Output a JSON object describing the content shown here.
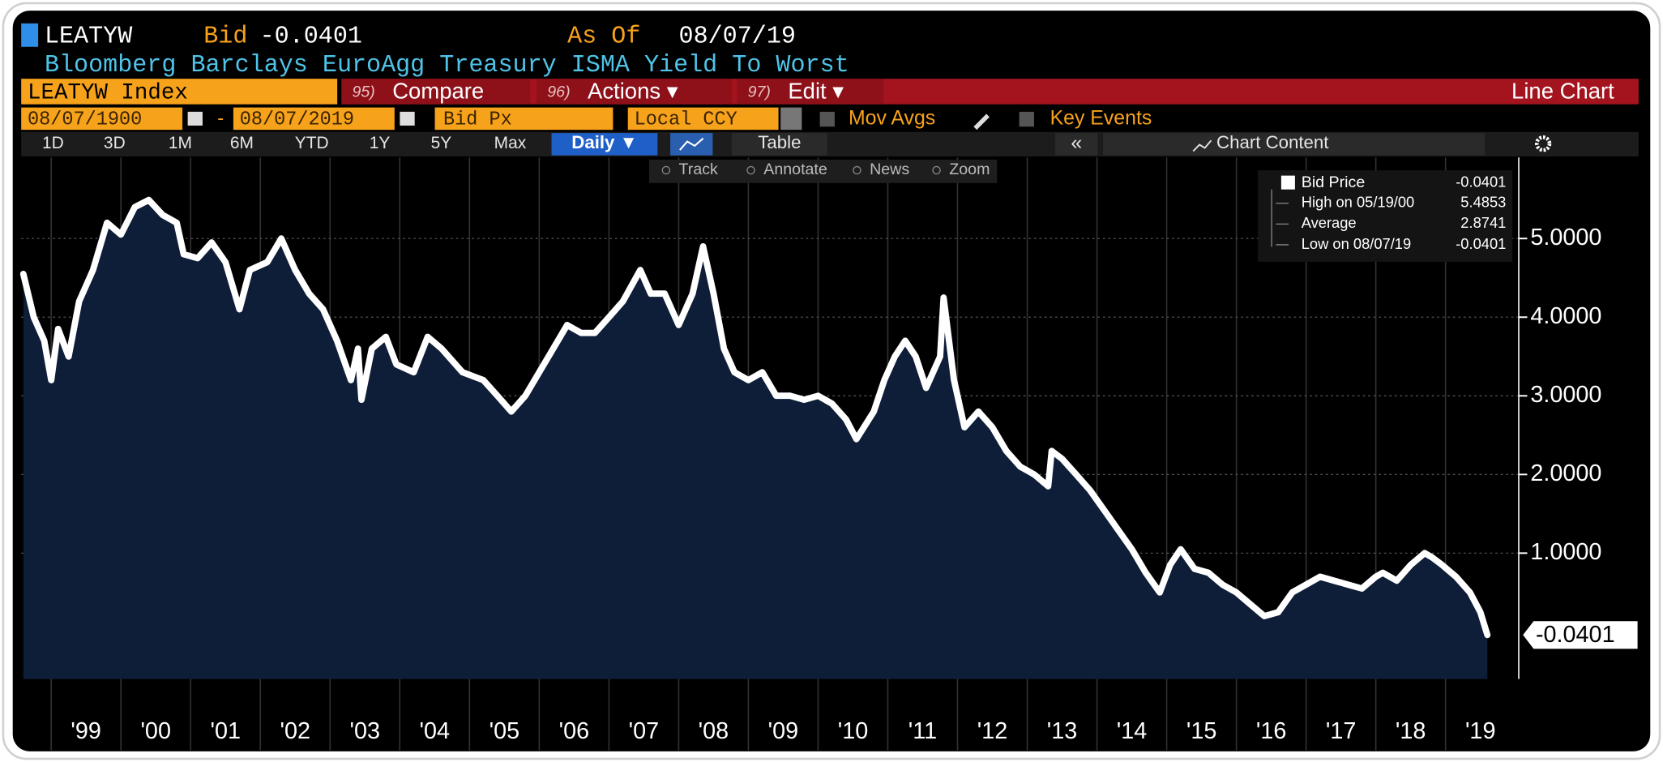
{
  "header": {
    "ticker": "LEATYW",
    "bid_label": "Bid",
    "bid_value": "-0.0401",
    "asof_label": "As Of",
    "asof_value": "08/07/19",
    "description": "Bloomberg Barclays EuroAgg Treasury ISMA Yield To Worst"
  },
  "menu": {
    "security": "LEATYW Index",
    "items": [
      {
        "key": "95)",
        "label": "Compare"
      },
      {
        "key": "96)",
        "label": "Actions ▾"
      },
      {
        "key": "97)",
        "label": "Edit ▾"
      }
    ],
    "view": "Line Chart"
  },
  "fields": {
    "start_date": "08/07/1900",
    "end_date": "08/07/2019",
    "field": "Bid Px",
    "currency": "Local CCY",
    "mov_avgs": "Mov Avgs",
    "key_events": "Key Events"
  },
  "periods": [
    "1D",
    "3D",
    "1M",
    "6M",
    "YTD",
    "1Y",
    "5Y",
    "Max"
  ],
  "controls": {
    "frequency": "Daily ▼",
    "table": "Table",
    "collapse": "«",
    "chart_content": "Chart Content"
  },
  "tools": [
    "Track",
    "Annotate",
    "News",
    "Zoom"
  ],
  "legend_stats": [
    {
      "label": "High on 05/19/00",
      "value": 5.4853
    },
    {
      "label": "Average",
      "value": 2.8741
    },
    {
      "label": "Low on 08/07/19",
      "value": -0.0401
    }
  ],
  "chart_data": {
    "type": "area",
    "x": [
      1998.6,
      1998.75,
      1998.9,
      1999.0,
      1999.1,
      1999.25,
      1999.4,
      1999.6,
      1999.8,
      2000.0,
      2000.2,
      2000.4,
      2000.6,
      2000.8,
      2000.9,
      2001.1,
      2001.3,
      2001.5,
      2001.7,
      2001.85,
      2002.1,
      2002.3,
      2002.5,
      2002.7,
      2002.9,
      2003.1,
      2003.3,
      2003.4,
      2003.45,
      2003.6,
      2003.8,
      2003.95,
      2004.2,
      2004.4,
      2004.6,
      2004.9,
      2005.2,
      2005.4,
      2005.6,
      2005.8,
      2006.0,
      2006.2,
      2006.4,
      2006.6,
      2006.8,
      2007.0,
      2007.2,
      2007.45,
      2007.6,
      2007.8,
      2008.0,
      2008.2,
      2008.35,
      2008.5,
      2008.65,
      2008.8,
      2009.0,
      2009.2,
      2009.4,
      2009.6,
      2009.8,
      2010.0,
      2010.2,
      2010.4,
      2010.55,
      2010.8,
      2010.95,
      2011.1,
      2011.25,
      2011.4,
      2011.55,
      2011.75,
      2011.8,
      2011.95,
      2012.1,
      2012.3,
      2012.5,
      2012.7,
      2012.9,
      2013.1,
      2013.3,
      2013.35,
      2013.5,
      2013.7,
      2013.9,
      2014.1,
      2014.3,
      2014.5,
      2014.7,
      2014.9,
      2015.05,
      2015.2,
      2015.4,
      2015.6,
      2015.8,
      2016.0,
      2016.2,
      2016.4,
      2016.6,
      2016.8,
      2017.0,
      2017.2,
      2017.4,
      2017.6,
      2017.8,
      2018.0,
      2018.1,
      2018.3,
      2018.5,
      2018.7,
      2018.8,
      2018.95,
      2019.15,
      2019.35,
      2019.5,
      2019.6
    ],
    "series": [
      {
        "name": "Bid Price",
        "color": "#ffffff",
        "fill": "#0e1d38",
        "values": [
          4.55,
          4.0,
          3.7,
          3.2,
          3.85,
          3.5,
          4.2,
          4.6,
          5.2,
          5.05,
          5.4,
          5.49,
          5.3,
          5.2,
          4.8,
          4.75,
          4.95,
          4.7,
          4.1,
          4.6,
          4.7,
          5.0,
          4.6,
          4.3,
          4.1,
          3.7,
          3.2,
          3.6,
          2.95,
          3.6,
          3.75,
          3.4,
          3.3,
          3.75,
          3.6,
          3.3,
          3.2,
          3.0,
          2.8,
          3.0,
          3.3,
          3.6,
          3.9,
          3.8,
          3.8,
          4.0,
          4.2,
          4.6,
          4.3,
          4.3,
          3.9,
          4.3,
          4.9,
          4.3,
          3.6,
          3.3,
          3.2,
          3.3,
          3.0,
          3.0,
          2.95,
          3.0,
          2.9,
          2.7,
          2.45,
          2.8,
          3.2,
          3.5,
          3.7,
          3.5,
          3.1,
          3.5,
          4.25,
          3.2,
          2.6,
          2.8,
          2.6,
          2.3,
          2.1,
          2.0,
          1.85,
          2.3,
          2.2,
          2.0,
          1.8,
          1.55,
          1.3,
          1.05,
          0.75,
          0.5,
          0.85,
          1.05,
          0.8,
          0.75,
          0.6,
          0.5,
          0.35,
          0.2,
          0.25,
          0.5,
          0.6,
          0.7,
          0.65,
          0.6,
          0.55,
          0.7,
          0.75,
          0.65,
          0.85,
          1.0,
          0.95,
          0.85,
          0.7,
          0.5,
          0.25,
          -0.0401
        ]
      }
    ],
    "xlim": [
      1998.57,
      2020.05
    ],
    "xticks": [
      {
        "value": 1999,
        "label": "'99"
      },
      {
        "value": 2000,
        "label": "'00"
      },
      {
        "value": 2001,
        "label": "'01"
      },
      {
        "value": 2002,
        "label": "'02"
      },
      {
        "value": 2003,
        "label": "'03"
      },
      {
        "value": 2004,
        "label": "'04"
      },
      {
        "value": 2005,
        "label": "'05"
      },
      {
        "value": 2006,
        "label": "'06"
      },
      {
        "value": 2007,
        "label": "'07"
      },
      {
        "value": 2008,
        "label": "'08"
      },
      {
        "value": 2009,
        "label": "'09"
      },
      {
        "value": 2010,
        "label": "'10"
      },
      {
        "value": 2011,
        "label": "'11"
      },
      {
        "value": 2012,
        "label": "'12"
      },
      {
        "value": 2013,
        "label": "'13"
      },
      {
        "value": 2014,
        "label": "'14"
      },
      {
        "value": 2015,
        "label": "'15"
      },
      {
        "value": 2016,
        "label": "'16"
      },
      {
        "value": 2017,
        "label": "'17"
      },
      {
        "value": 2018,
        "label": "'18"
      },
      {
        "value": 2019,
        "label": "'19"
      }
    ],
    "ylim": [
      -0.6,
      6.03
    ],
    "yticks": [
      {
        "value": 1,
        "label": "1.0000"
      },
      {
        "value": 2,
        "label": "2.0000"
      },
      {
        "value": 3,
        "label": "3.0000"
      },
      {
        "value": 4,
        "label": "4.0000"
      },
      {
        "value": 5,
        "label": "5.0000"
      }
    ],
    "grid": true
  }
}
